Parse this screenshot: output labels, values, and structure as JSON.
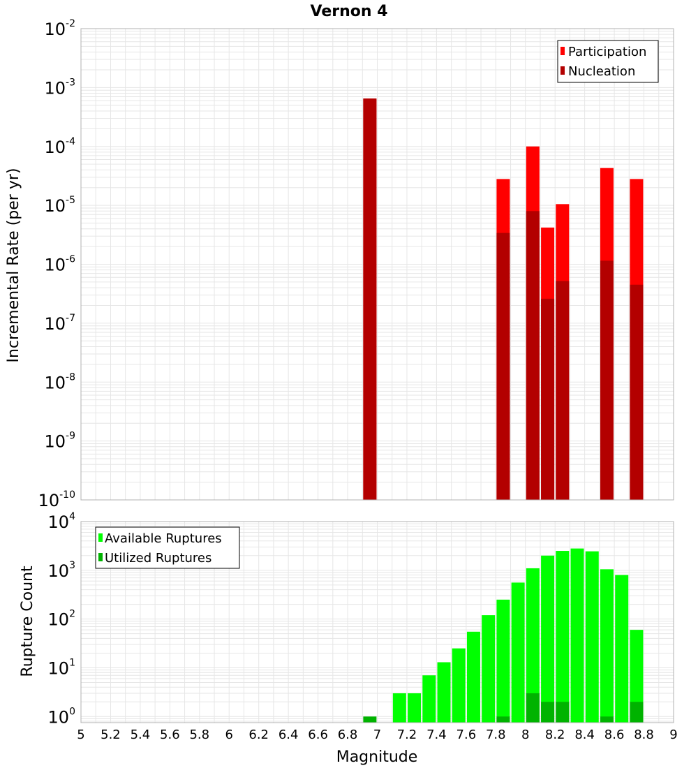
{
  "chart_data": [
    {
      "type": "bar",
      "title": "Vernon 4",
      "xlabel": "",
      "ylabel": "Incremental Rate (per yr)",
      "y_scale": "log",
      "ylim": [
        1e-10,
        0.01
      ],
      "xlim": [
        5,
        9
      ],
      "grid": true,
      "legend_position": "top-right",
      "y_ticks": [
        {
          "base": "10",
          "exp": "-10"
        },
        {
          "base": "10",
          "exp": "-9"
        },
        {
          "base": "10",
          "exp": "-8"
        },
        {
          "base": "10",
          "exp": "-7"
        },
        {
          "base": "10",
          "exp": "-6"
        },
        {
          "base": "10",
          "exp": "-5"
        },
        {
          "base": "10",
          "exp": "-4"
        },
        {
          "base": "10",
          "exp": "-3"
        },
        {
          "base": "10",
          "exp": "-2"
        }
      ],
      "series": [
        {
          "name": "Participation",
          "color": "#ff0000",
          "x": [
            6.95,
            7.85,
            8.05,
            8.15,
            8.25,
            8.55,
            8.75
          ],
          "values": [
            0.00065,
            2.8e-05,
            0.0001,
            4.2e-06,
            1.05e-05,
            4.3e-05,
            2.8e-05
          ]
        },
        {
          "name": "Nucleation",
          "color": "#b30000",
          "x": [
            6.95,
            7.85,
            8.05,
            8.15,
            8.25,
            8.55,
            8.75
          ],
          "values": [
            0.00065,
            3.4e-06,
            8e-06,
            2.6e-07,
            5.2e-07,
            1.15e-06,
            4.5e-07
          ]
        }
      ]
    },
    {
      "type": "bar",
      "title": "",
      "xlabel": "Magnitude",
      "ylabel": "Rupture Count",
      "y_scale": "log",
      "ylim": [
        0.75,
        10000
      ],
      "xlim": [
        5,
        9
      ],
      "grid": true,
      "legend_position": "top-left",
      "x_ticks": [
        "5",
        "5.2",
        "5.4",
        "5.6",
        "5.8",
        "6",
        "6.2",
        "6.4",
        "6.6",
        "6.8",
        "7",
        "7.2",
        "7.4",
        "7.6",
        "7.8",
        "8",
        "8.2",
        "8.4",
        "8.6",
        "8.8",
        "9"
      ],
      "y_ticks": [
        {
          "base": "10",
          "exp": "0"
        },
        {
          "base": "10",
          "exp": "1"
        },
        {
          "base": "10",
          "exp": "2"
        },
        {
          "base": "10",
          "exp": "3"
        },
        {
          "base": "10",
          "exp": "4"
        }
      ],
      "series": [
        {
          "name": "Available Ruptures",
          "color": "#00ff00",
          "x": [
            7.15,
            7.25,
            7.35,
            7.45,
            7.55,
            7.65,
            7.75,
            7.85,
            7.95,
            8.05,
            8.15,
            8.25,
            8.35,
            8.45,
            8.55,
            8.65,
            8.75
          ],
          "values": [
            3,
            3,
            7,
            13,
            25,
            55,
            120,
            250,
            560,
            1100,
            2000,
            2500,
            2800,
            2450,
            1050,
            800,
            60
          ]
        },
        {
          "name": "Utilized Ruptures",
          "color": "#00b300",
          "x": [
            6.95,
            7.85,
            8.05,
            8.15,
            8.25,
            8.55,
            8.75
          ],
          "values": [
            1,
            1,
            3,
            2,
            2,
            1,
            2
          ]
        }
      ]
    }
  ]
}
